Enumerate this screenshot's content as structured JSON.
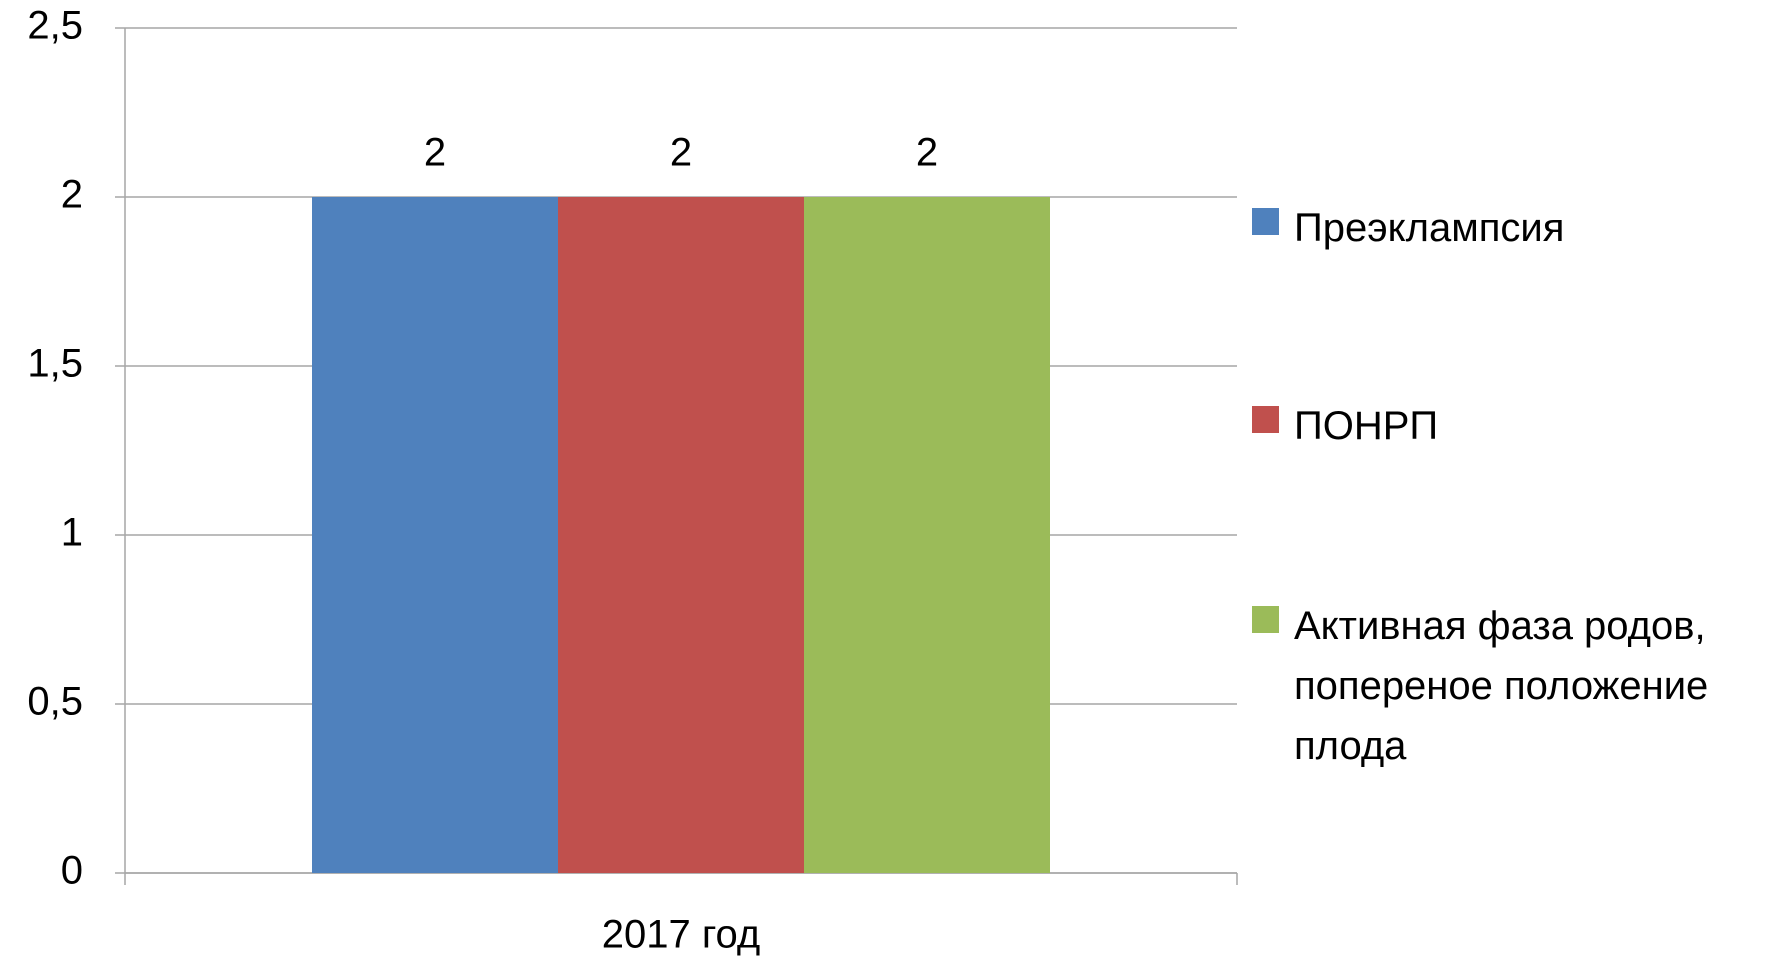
{
  "chart_data": {
    "type": "bar",
    "categories": [
      "2017 год"
    ],
    "series": [
      {
        "name": "Преэклампсия",
        "color": "#4f81bd",
        "values": [
          2
        ]
      },
      {
        "name": "ПОНРП",
        "color": "#c0504d",
        "values": [
          2
        ]
      },
      {
        "name": "Активная фаза родов, попереное положение плода",
        "color": "#9bbb59",
        "values": [
          2
        ]
      }
    ],
    "ylim": [
      0,
      2.5
    ],
    "yticks": [
      0,
      {
        "value": 0.5,
        "label": "0,5"
      },
      1,
      {
        "value": 1.5,
        "label": "1,5"
      },
      2,
      {
        "value": 2.5,
        "label": "2,5"
      }
    ],
    "grid": true,
    "legend": "right"
  }
}
